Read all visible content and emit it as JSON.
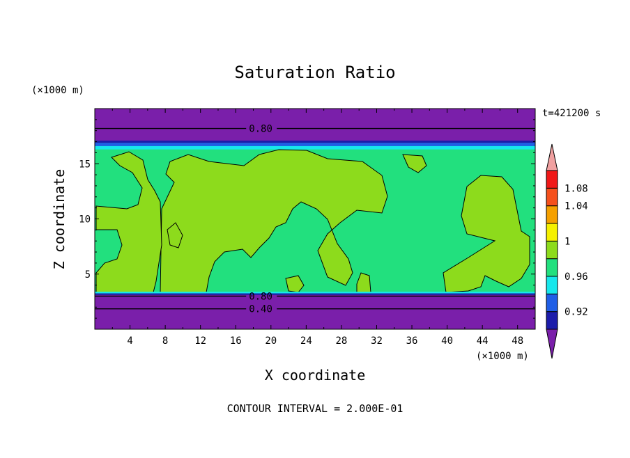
{
  "chart_data": {
    "type": "heatmap",
    "title": "Saturation Ratio",
    "xlabel": "X coordinate",
    "ylabel": "Z coordinate",
    "x_unit": "(×1000 m)",
    "y_unit": "(×1000 m)",
    "time_label": "t=421200 s",
    "footer": "CONTOUR INTERVAL = 2.000E-01",
    "xlim": [
      0,
      50
    ],
    "ylim": [
      0,
      20
    ],
    "x_ticks": [
      4,
      8,
      12,
      16,
      20,
      24,
      28,
      32,
      36,
      40,
      44,
      48
    ],
    "y_ticks": [
      5,
      10,
      15
    ],
    "contour_lines": [
      {
        "label": "0.80",
        "z": 18.2,
        "x": 17.5
      },
      {
        "label": "0.80",
        "z": 3.0,
        "x": 17.5
      },
      {
        "label": "0.40",
        "z": 1.85,
        "x": 17.5
      }
    ],
    "colorbar": {
      "tick_labels": [
        "1.08",
        "1.04",
        "1",
        "0.96",
        "0.92"
      ],
      "colors": [
        "#7a1faa",
        "#1c1caa",
        "#1f5ee6",
        "#17e7ec",
        "#22e07e",
        "#8ddb1c",
        "#f5f000",
        "#f5a000",
        "#f5501c",
        "#f01818",
        "#f0a0a0"
      ]
    },
    "bands": {
      "top_purple": "#7a1faa",
      "cloud_free_green": "#22e07e",
      "supersat_yellowgreen": "#8ddb1c",
      "cyan": "#17e7ec",
      "blue": "#1f5ee6",
      "navy": "#1c1caa"
    }
  }
}
